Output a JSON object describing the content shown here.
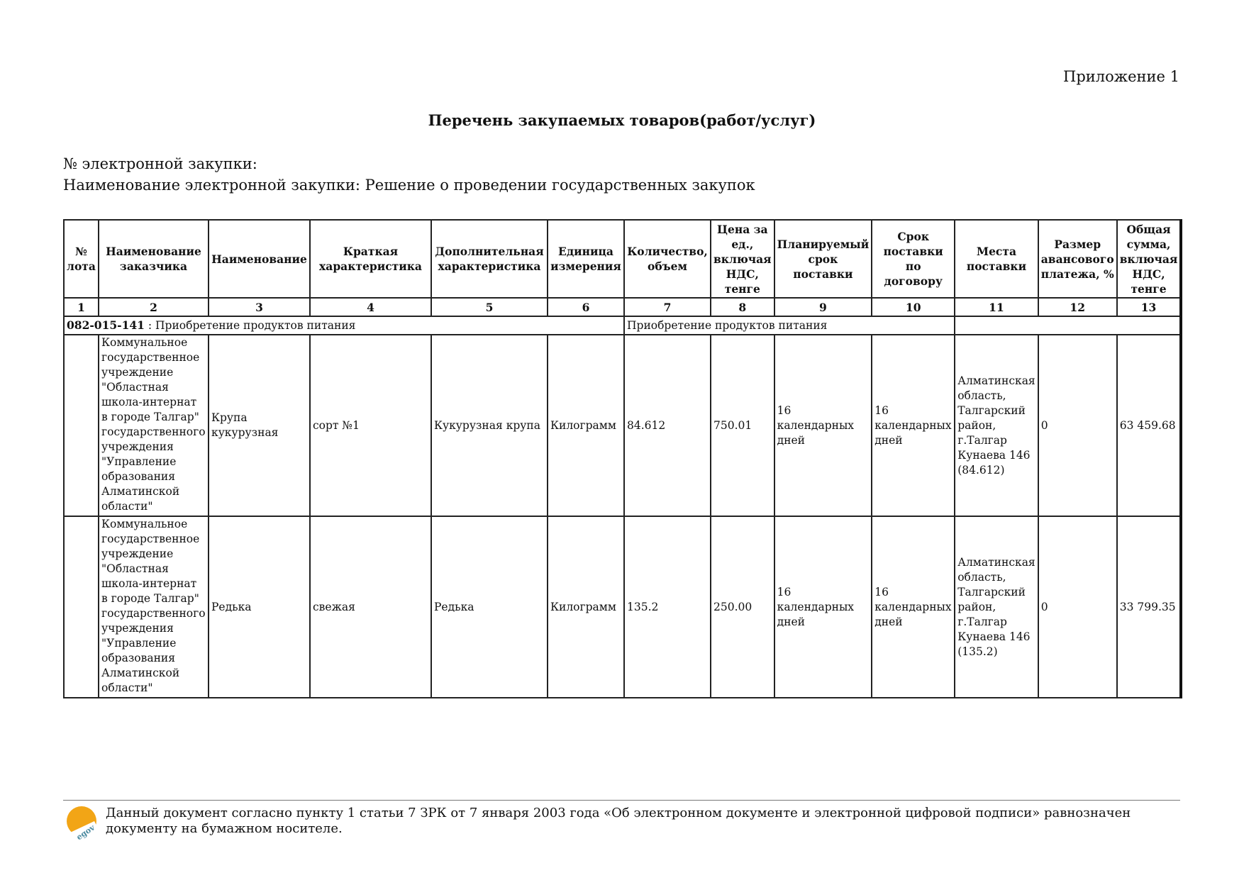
{
  "appendix": "Приложение 1",
  "title": "Перечень закупаемых товаров(работ/услуг)",
  "purchase_number_label": "№ электронной закупки:",
  "purchase_name_label": "Наименование электронной закупки: Решение о проведении государственных закупок",
  "table": {
    "headers": [
      "№ лота",
      "Наименование заказчика",
      "Наименование",
      "Краткая характеристика",
      "Дополнительная характеристика",
      "Единица измерения",
      "Количество, объем",
      "Цена за ед., включая НДС, тенге",
      "Планируемый срок поставки",
      "Срок поставки по договору",
      "Места поставки",
      "Размер авансового платежа, %",
      "Общая сумма, включая НДС, тенге"
    ],
    "column_numbers": [
      "1",
      "2",
      "3",
      "4",
      "5",
      "6",
      "7",
      "8",
      "9",
      "10",
      "11",
      "12",
      "13"
    ],
    "group": {
      "code": "082-015-141",
      "name": " : Приобретение продуктов питания",
      "name2": "Приобретение продуктов питания"
    },
    "rows": [
      {
        "lot": "",
        "customer": "Коммунальное государственное учреждение \"Областная школа-интернат в городе Талгар\" государственного учреждения \"Управление образования Алматинской области\"",
        "name": "Крупа кукурузная",
        "short": "сорт №1",
        "extra": "Кукурузная крупа",
        "unit": "Килограмм",
        "qty": "84.612",
        "price": "750.01",
        "planned": "16 календарных дней",
        "contract": "16 календарных дней",
        "place": "Алматинская область, Талгарский район, г.Талгар Кунаева 146 (84.612)",
        "advance": "0",
        "total": "63 459.68"
      },
      {
        "lot": "",
        "customer": "Коммунальное государственное учреждение \"Областная школа-интернат в городе Талгар\" государственного учреждения \"Управление образования Алматинской области\"",
        "name": "Редька",
        "short": "свежая",
        "extra": "Редька",
        "unit": "Килограмм",
        "qty": "135.2",
        "price": "250.00",
        "planned": "16 календарных дней",
        "contract": "16 календарных дней",
        "place": "Алматинская область, Талгарский район, г.Талгар Кунаева 146 (135.2)",
        "advance": "0",
        "total": "33 799.35"
      }
    ]
  },
  "footer": {
    "text": "Данный документ согласно пункту 1 статьи 7 ЗРК от 7 января 2003 года «Об электронном документе и электронной цифровой подписи» равнозначен документу на бумажном носителе.",
    "logo_icon": "egov-logo-icon"
  }
}
